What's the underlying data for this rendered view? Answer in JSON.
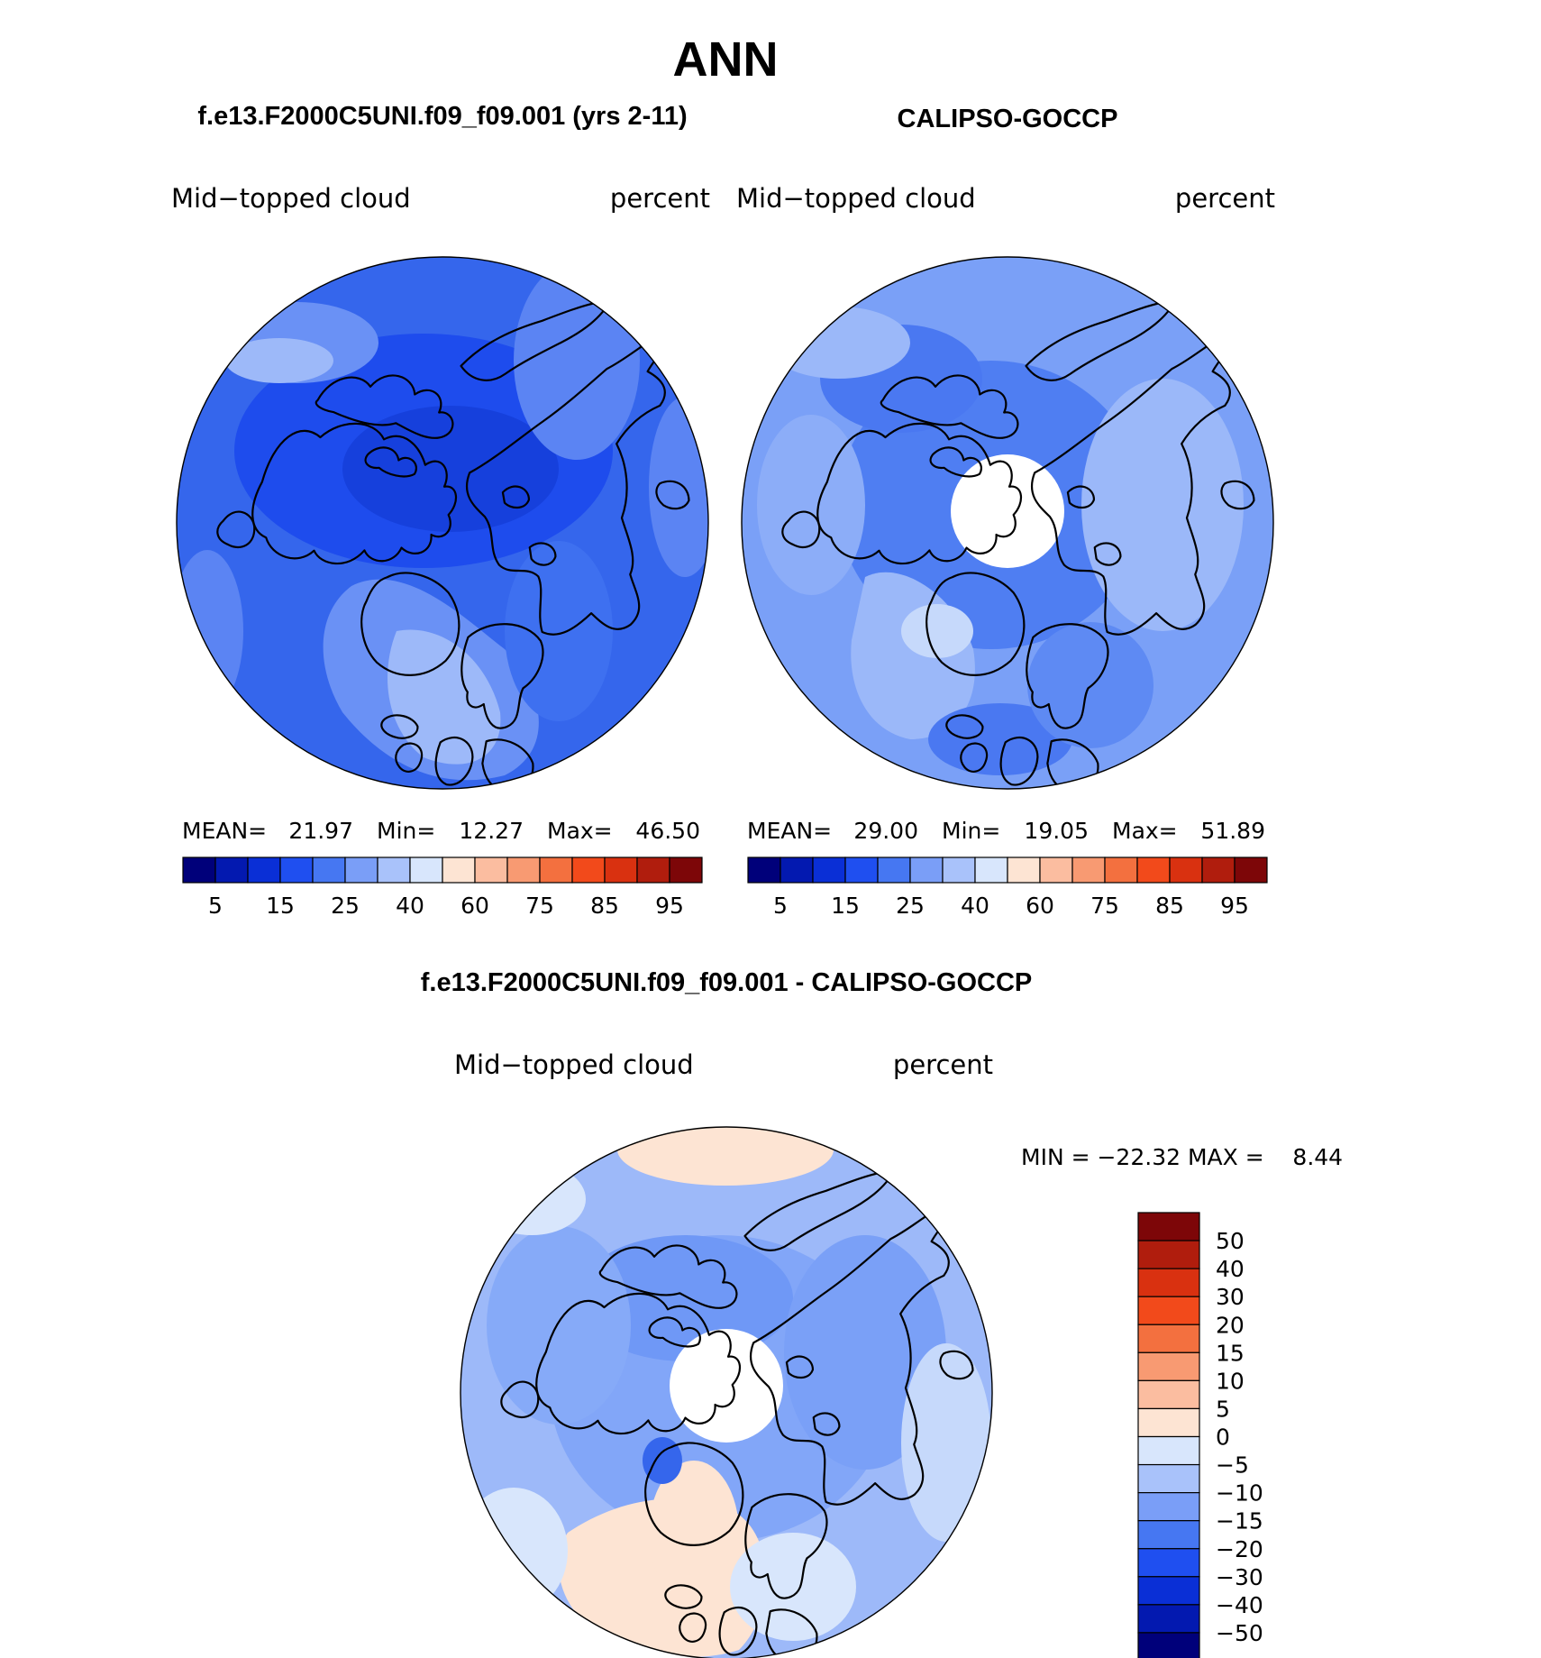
{
  "page_title": "ANN",
  "chart_data": [
    {
      "type": "polar-contour-map",
      "panel_title": "f.e13.F2000C5UNI.f09_f09.001 (yrs 2-11)",
      "left_label": "Mid−topped cloud",
      "right_label": "percent",
      "stats": {
        "mean_label": "MEAN=",
        "mean": "21.97",
        "min_label": "Min=",
        "min": "12.27",
        "max_label": "Max=",
        "max": "46.50"
      },
      "colorbar_ticks": [
        "5",
        "15",
        "25",
        "40",
        "60",
        "75",
        "85",
        "95"
      ],
      "missing_pole": false
    },
    {
      "type": "polar-contour-map",
      "panel_title": "CALIPSO-GOCCP",
      "left_label": "Mid−topped cloud",
      "right_label": "percent",
      "stats": {
        "mean_label": "MEAN=",
        "mean": "29.00",
        "min_label": "Min=",
        "min": "19.05",
        "max_label": "Max=",
        "max": "51.89"
      },
      "colorbar_ticks": [
        "5",
        "15",
        "25",
        "40",
        "60",
        "75",
        "85",
        "95"
      ],
      "missing_pole": true
    },
    {
      "type": "polar-contour-map",
      "panel_title": "f.e13.F2000C5UNI.f09_f09.001 - CALIPSO-GOCCP",
      "left_label": "Mid−topped cloud",
      "right_label": "percent",
      "stats_text": "MIN = −22.32 MAX =    8.44",
      "colorbar_ticks": [
        "50",
        "40",
        "30",
        "20",
        "15",
        "10",
        "5",
        "0",
        "−5",
        "−10",
        "−15",
        "−20",
        "−30",
        "−40",
        "−50"
      ],
      "missing_pole": true
    }
  ],
  "colors": {
    "abs_scale": [
      "#00007a",
      "#0319b0",
      "#0a2fd6",
      "#1f4ff0",
      "#4677f2",
      "#7a9ef7",
      "#a9c2fa",
      "#d8e6fc",
      "#fde4d3",
      "#fbbda0",
      "#f89a72",
      "#f3703f",
      "#f24a1b",
      "#d93110",
      "#b01d0d",
      "#7d0608"
    ],
    "diff_scale": [
      "#7d0608",
      "#b01d0d",
      "#d93110",
      "#f24a1b",
      "#f3703f",
      "#f89a72",
      "#fbbda0",
      "#fde4d3",
      "#d8e6fc",
      "#a9c2fa",
      "#7a9ef7",
      "#4677f2",
      "#1f4ff0",
      "#0a2fd6",
      "#0319b0",
      "#00007a"
    ]
  }
}
